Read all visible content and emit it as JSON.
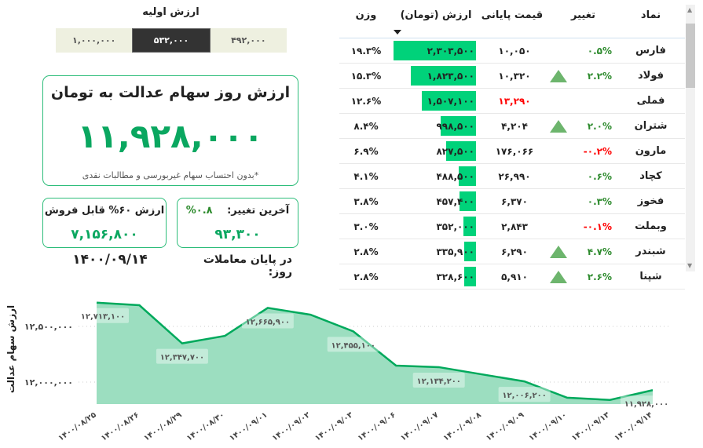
{
  "initial_value": {
    "title": "ارزش اولیه",
    "options": [
      "۱,۰۰۰,۰۰۰",
      "۵۳۲,۰۰۰",
      "۴۹۲,۰۰۰"
    ],
    "selected": "۵۳۲,۰۰۰"
  },
  "main_card": {
    "title": "ارزش روز سهام عدالت به تومان",
    "value": "۱۱,۹۲۸,۰۰۰",
    "note": "*بدون احتساب سهام غیربورسی و مطالبات نقدی"
  },
  "sellable_card": {
    "label": "ارزش ۶۰% قابل فروش",
    "value": "۷,۱۵۶,۸۰۰"
  },
  "change_card": {
    "label": "آخرین تغییر:",
    "percent": "۰.۸%",
    "value": "۹۳,۳۰۰"
  },
  "day": {
    "label": "در پایان معاملات روز:",
    "date": "۱۴۰۰/۰۹/۱۴"
  },
  "colors": {
    "accent": "#0aa760",
    "bar": "#00d27a",
    "negative": "#ff0000",
    "positive": "#2e8b2e",
    "up_icon": "#6db56d"
  },
  "table": {
    "headers": {
      "symbol": "نماد",
      "change": "تغییر",
      "price": "قیمت پایانی",
      "value": "ارزش (تومان)",
      "weight": "وزن"
    },
    "sort_icon": "sort-desc-icon",
    "rows": [
      {
        "symbol": "فارس",
        "change": "۰.۵%",
        "change_dir": "pos",
        "up_icon": false,
        "price": "۱۰,۰۵۰",
        "price_red": false,
        "value": "۲,۳۰۳,۵۰۰",
        "value_num": 2303500,
        "weight": "۱۹.۳%"
      },
      {
        "symbol": "فولاد",
        "change": "۲.۲%",
        "change_dir": "pos",
        "up_icon": true,
        "price": "۱۰,۳۲۰",
        "price_red": false,
        "value": "۱,۸۲۳,۵۰۰",
        "value_num": 1823500,
        "weight": "۱۵.۳%"
      },
      {
        "symbol": "فملی",
        "change": "",
        "change_dir": "none",
        "up_icon": false,
        "price": "۱۳,۲۹۰",
        "price_red": true,
        "value": "۱,۵۰۷,۱۰۰",
        "value_num": 1507100,
        "weight": "۱۲.۶%"
      },
      {
        "symbol": "شتران",
        "change": "۲.۰%",
        "change_dir": "pos",
        "up_icon": true,
        "price": "۴,۲۰۴",
        "price_red": false,
        "value": "۹۹۸,۵۰۰",
        "value_num": 998500,
        "weight": "۸.۴%"
      },
      {
        "symbol": "مارون",
        "change": "-۰.۲%",
        "change_dir": "neg",
        "up_icon": false,
        "price": "۱۷۶,۰۶۶",
        "price_red": false,
        "value": "۸۲۷,۵۰۰",
        "value_num": 827500,
        "weight": "۶.۹%"
      },
      {
        "symbol": "کچاد",
        "change": "۰.۶%",
        "change_dir": "pos",
        "up_icon": false,
        "price": "۲۶,۹۹۰",
        "price_red": false,
        "value": "۴۸۸,۵۰۰",
        "value_num": 488500,
        "weight": "۴.۱%"
      },
      {
        "symbol": "فخوز",
        "change": "۰.۳%",
        "change_dir": "pos",
        "up_icon": false,
        "price": "۶,۳۷۰",
        "price_red": false,
        "value": "۴۵۷,۴۰۰",
        "value_num": 457400,
        "weight": "۳.۸%"
      },
      {
        "symbol": "وبملت",
        "change": "-۰.۱%",
        "change_dir": "neg",
        "up_icon": false,
        "price": "۲,۸۴۳",
        "price_red": false,
        "value": "۳۵۲,۰۰۰",
        "value_num": 352000,
        "weight": "۳.۰%"
      },
      {
        "symbol": "شبندر",
        "change": "۴.۷%",
        "change_dir": "pos",
        "up_icon": true,
        "price": "۶,۲۹۰",
        "price_red": false,
        "value": "۳۳۵,۹۰۰",
        "value_num": 335900,
        "weight": "۲.۸%"
      },
      {
        "symbol": "شپنا",
        "change": "۲.۶%",
        "change_dir": "pos",
        "up_icon": true,
        "price": "۵,۹۱۰",
        "price_red": false,
        "value": "۳۲۸,۶۰۰",
        "value_num": 328600,
        "weight": "۲.۸%"
      }
    ]
  },
  "chart_data": {
    "type": "area",
    "ylabel": "ارزش سهام عدالت",
    "xlabel": "",
    "x": [
      "۱۴۰۰/۰۸/۲۵",
      "۱۴۰۰/۰۸/۲۶",
      "۱۴۰۰/۰۸/۲۹",
      "۱۴۰۰/۰۸/۳۰",
      "۱۴۰۰/۰۹/۰۱",
      "۱۴۰۰/۰۹/۰۲",
      "۱۴۰۰/۰۹/۰۳",
      "۱۴۰۰/۰۹/۰۶",
      "۱۴۰۰/۰۹/۰۷",
      "۱۴۰۰/۰۹/۰۸",
      "۱۴۰۰/۰۹/۰۹",
      "۱۴۰۰/۰۹/۱۰",
      "۱۴۰۰/۰۹/۱۳",
      "۱۴۰۰/۰۹/۱۴"
    ],
    "values": [
      12713100,
      12690000,
      12347700,
      12415000,
      12665900,
      12605000,
      12455100,
      12148000,
      12134200,
      12070000,
      12006200,
      11860000,
      11840000,
      11928000
    ],
    "data_labels": [
      {
        "index": 0,
        "text": "۱۲,۷۱۳,۱۰۰"
      },
      {
        "index": 2,
        "text": "۱۲,۳۴۷,۷۰۰"
      },
      {
        "index": 4,
        "text": "۱۲,۶۶۵,۹۰۰"
      },
      {
        "index": 6,
        "text": "۱۲,۴۵۵,۱۰۰"
      },
      {
        "index": 8,
        "text": "۱۲,۱۳۴,۲۰۰"
      },
      {
        "index": 10,
        "text": "۱۲,۰۰۶,۲۰۰"
      },
      {
        "index": 13,
        "text": "۱۱,۹۲۸,۰۰۰"
      }
    ],
    "yticks": [
      {
        "value": 12000000,
        "label": "۱۲,۰۰۰,۰۰۰"
      },
      {
        "value": 12500000,
        "label": "۱۲,۵۰۰,۰۰۰"
      }
    ],
    "ylim": [
      11800000,
      12800000
    ],
    "grid": true,
    "colors": {
      "line": "#00a95c",
      "fill": "#9cdec0"
    }
  }
}
